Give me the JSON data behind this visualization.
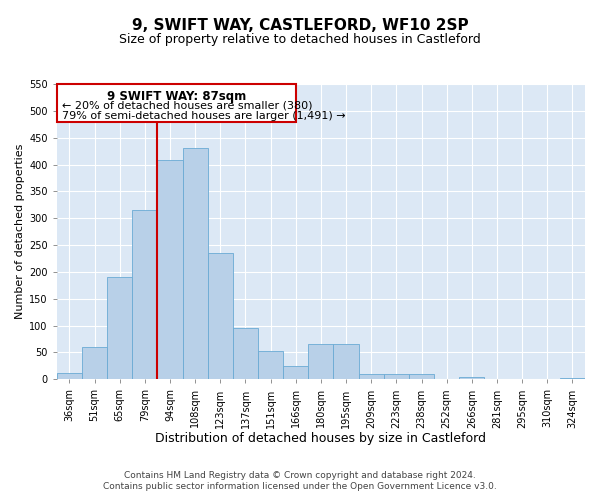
{
  "title": "9, SWIFT WAY, CASTLEFORD, WF10 2SP",
  "subtitle": "Size of property relative to detached houses in Castleford",
  "xlabel": "Distribution of detached houses by size in Castleford",
  "ylabel": "Number of detached properties",
  "bar_labels": [
    "36sqm",
    "51sqm",
    "65sqm",
    "79sqm",
    "94sqm",
    "108sqm",
    "123sqm",
    "137sqm",
    "151sqm",
    "166sqm",
    "180sqm",
    "195sqm",
    "209sqm",
    "223sqm",
    "238sqm",
    "252sqm",
    "266sqm",
    "281sqm",
    "295sqm",
    "310sqm",
    "324sqm"
  ],
  "bar_values": [
    12,
    60,
    190,
    315,
    408,
    430,
    235,
    95,
    53,
    25,
    65,
    65,
    10,
    10,
    10,
    0,
    5,
    0,
    0,
    0,
    3
  ],
  "bar_color": "#b8d0e8",
  "bar_edge_color": "#6aaad4",
  "background_color": "#dce8f5",
  "fig_background_color": "#ffffff",
  "vline_color": "#cc0000",
  "vline_pos": 3.5,
  "annotation_title": "9 SWIFT WAY: 87sqm",
  "annotation_line1": "← 20% of detached houses are smaller (380)",
  "annotation_line2": "79% of semi-detached houses are larger (1,491) →",
  "annotation_box_color": "#cc0000",
  "ylim": [
    0,
    550
  ],
  "yticks": [
    0,
    50,
    100,
    150,
    200,
    250,
    300,
    350,
    400,
    450,
    500,
    550
  ],
  "footnote1": "Contains HM Land Registry data © Crown copyright and database right 2024.",
  "footnote2": "Contains public sector information licensed under the Open Government Licence v3.0.",
  "title_fontsize": 11,
  "subtitle_fontsize": 9,
  "xlabel_fontsize": 9,
  "ylabel_fontsize": 8,
  "tick_fontsize": 7,
  "footnote_fontsize": 6.5
}
